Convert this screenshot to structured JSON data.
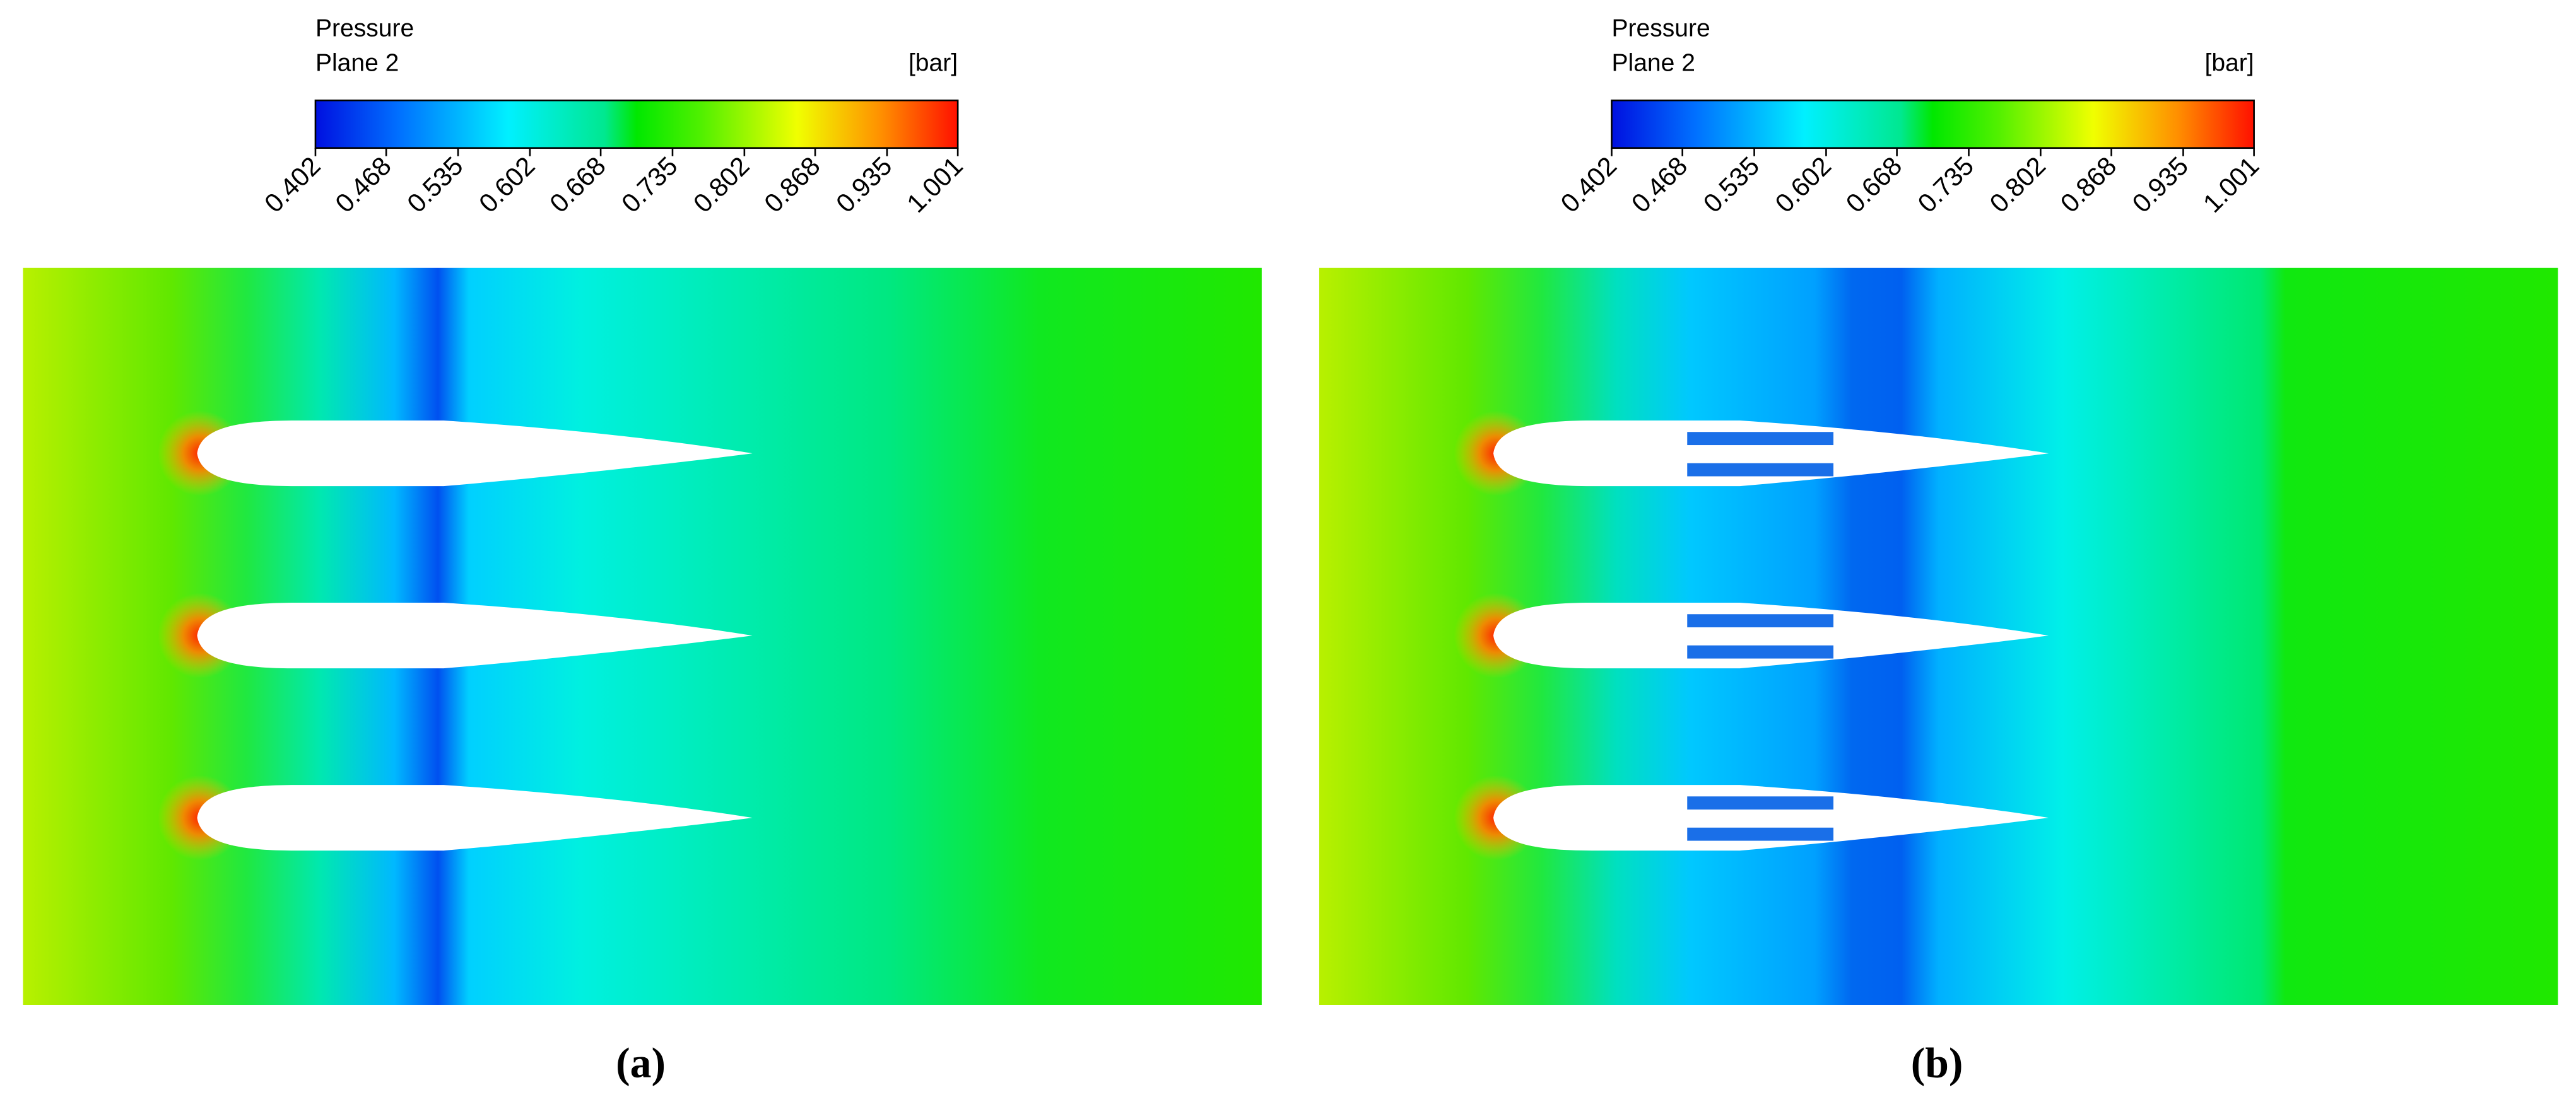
{
  "panels": [
    {
      "legend": {
        "title": "Pressure",
        "subtitle": "Plane 2",
        "unit": "[bar]",
        "range": [
          0.402,
          1.001
        ],
        "ticks": [
          0.402,
          0.468,
          0.535,
          0.602,
          0.668,
          0.735,
          0.802,
          0.868,
          0.935,
          1.001
        ]
      },
      "caption": "(a)"
    },
    {
      "legend": {
        "title": "Pressure",
        "subtitle": "Plane 2",
        "unit": "[bar]",
        "range": [
          0.402,
          1.001
        ],
        "ticks": [
          0.402,
          0.468,
          0.535,
          0.602,
          0.668,
          0.735,
          0.802,
          0.868,
          0.935,
          1.001
        ]
      },
      "caption": "(b)"
    }
  ]
}
